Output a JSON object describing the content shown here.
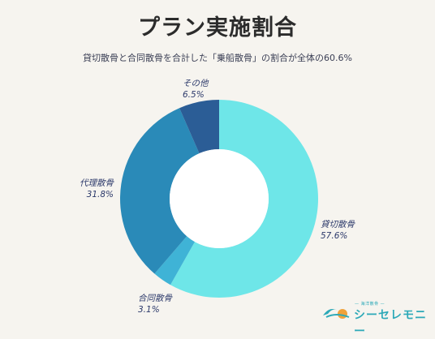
{
  "header": {
    "title": "プラン実施割合",
    "subtitle": "貸切散骨と合同散骨を合計した「乗船散骨」の割合が全体の60.6%"
  },
  "chart_data": {
    "type": "pie",
    "donut": true,
    "title": "プラン実施割合",
    "slices": [
      {
        "name": "貸切散骨",
        "value": 57.6,
        "label": "57.6%",
        "color": "#6ee6e8"
      },
      {
        "name": "合同散骨",
        "value": 3.1,
        "label": "3.1%",
        "color": "#3fb3d6"
      },
      {
        "name": "代理散骨",
        "value": 31.8,
        "label": "31.8%",
        "color": "#2a8ab8"
      },
      {
        "name": "その他",
        "value": 6.5,
        "label": "6.5%",
        "color": "#2b5d96"
      }
    ]
  },
  "logo": {
    "tagline": "— 海洋散骨 —",
    "text": "シーセレモニー"
  }
}
